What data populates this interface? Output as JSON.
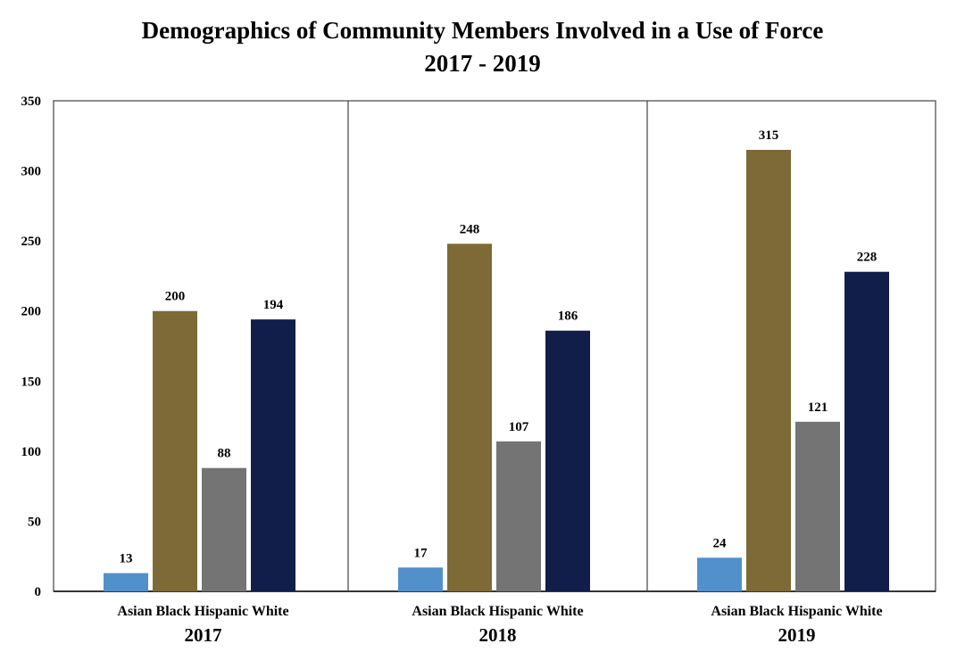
{
  "chart_data": {
    "type": "bar",
    "title": "Demographics of Community Members Involved in a Use of Force",
    "subtitle": "2017 - 2019",
    "xlabel": "",
    "ylabel": "",
    "ylim": [
      0,
      350
    ],
    "yticks": [
      0,
      50,
      100,
      150,
      200,
      250,
      300,
      350
    ],
    "grid": false,
    "legend": "none",
    "groups": [
      "2017",
      "2018",
      "2019"
    ],
    "categories": [
      "Asian",
      "Black",
      "Hispanic",
      "White"
    ],
    "colors": {
      "Asian": "#5290cc",
      "Black": "#7e6a36",
      "Hispanic": "#747474",
      "White": "#111e4a"
    },
    "series": [
      {
        "name": "Asian",
        "values": [
          13,
          17,
          24
        ]
      },
      {
        "name": "Black",
        "values": [
          200,
          248,
          315
        ]
      },
      {
        "name": "Hispanic",
        "values": [
          88,
          107,
          121
        ]
      },
      {
        "name": "White",
        "values": [
          194,
          186,
          228
        ]
      }
    ],
    "data_labels": true
  }
}
